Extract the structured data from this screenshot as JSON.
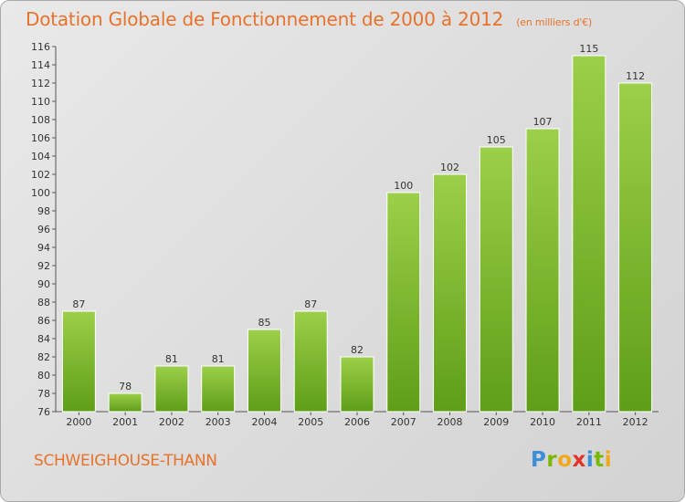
{
  "header": {
    "title": "Dotation Globale de Fonctionnement de 2000 à 2012",
    "unit": "(en milliers d'€)"
  },
  "footer": {
    "commune": "SCHWEIGHOUSE-THANN",
    "logo": [
      "P",
      "r",
      "o",
      "x",
      "i",
      "t",
      "i"
    ]
  },
  "colors": {
    "title": "#e8722a",
    "bar_top": "#9ccf4a",
    "bar_bottom": "#5f9e17",
    "axis": "#555555"
  },
  "chart_data": {
    "type": "bar",
    "title": "Dotation Globale de Fonctionnement de 2000 à 2012",
    "subtitle": "(en milliers d'€)",
    "categories": [
      "2000",
      "2001",
      "2002",
      "2003",
      "2004",
      "2005",
      "2006",
      "2007",
      "2008",
      "2009",
      "2010",
      "2011",
      "2012"
    ],
    "values": [
      87,
      78,
      81,
      81,
      85,
      87,
      82,
      100,
      102,
      105,
      107,
      115,
      112
    ],
    "ylim": [
      76,
      116
    ],
    "yticks": [
      76,
      78,
      80,
      82,
      84,
      86,
      88,
      90,
      92,
      94,
      96,
      98,
      100,
      102,
      104,
      106,
      108,
      110,
      112,
      114,
      116
    ],
    "grid": false,
    "legend": "none",
    "data_labels": true
  }
}
